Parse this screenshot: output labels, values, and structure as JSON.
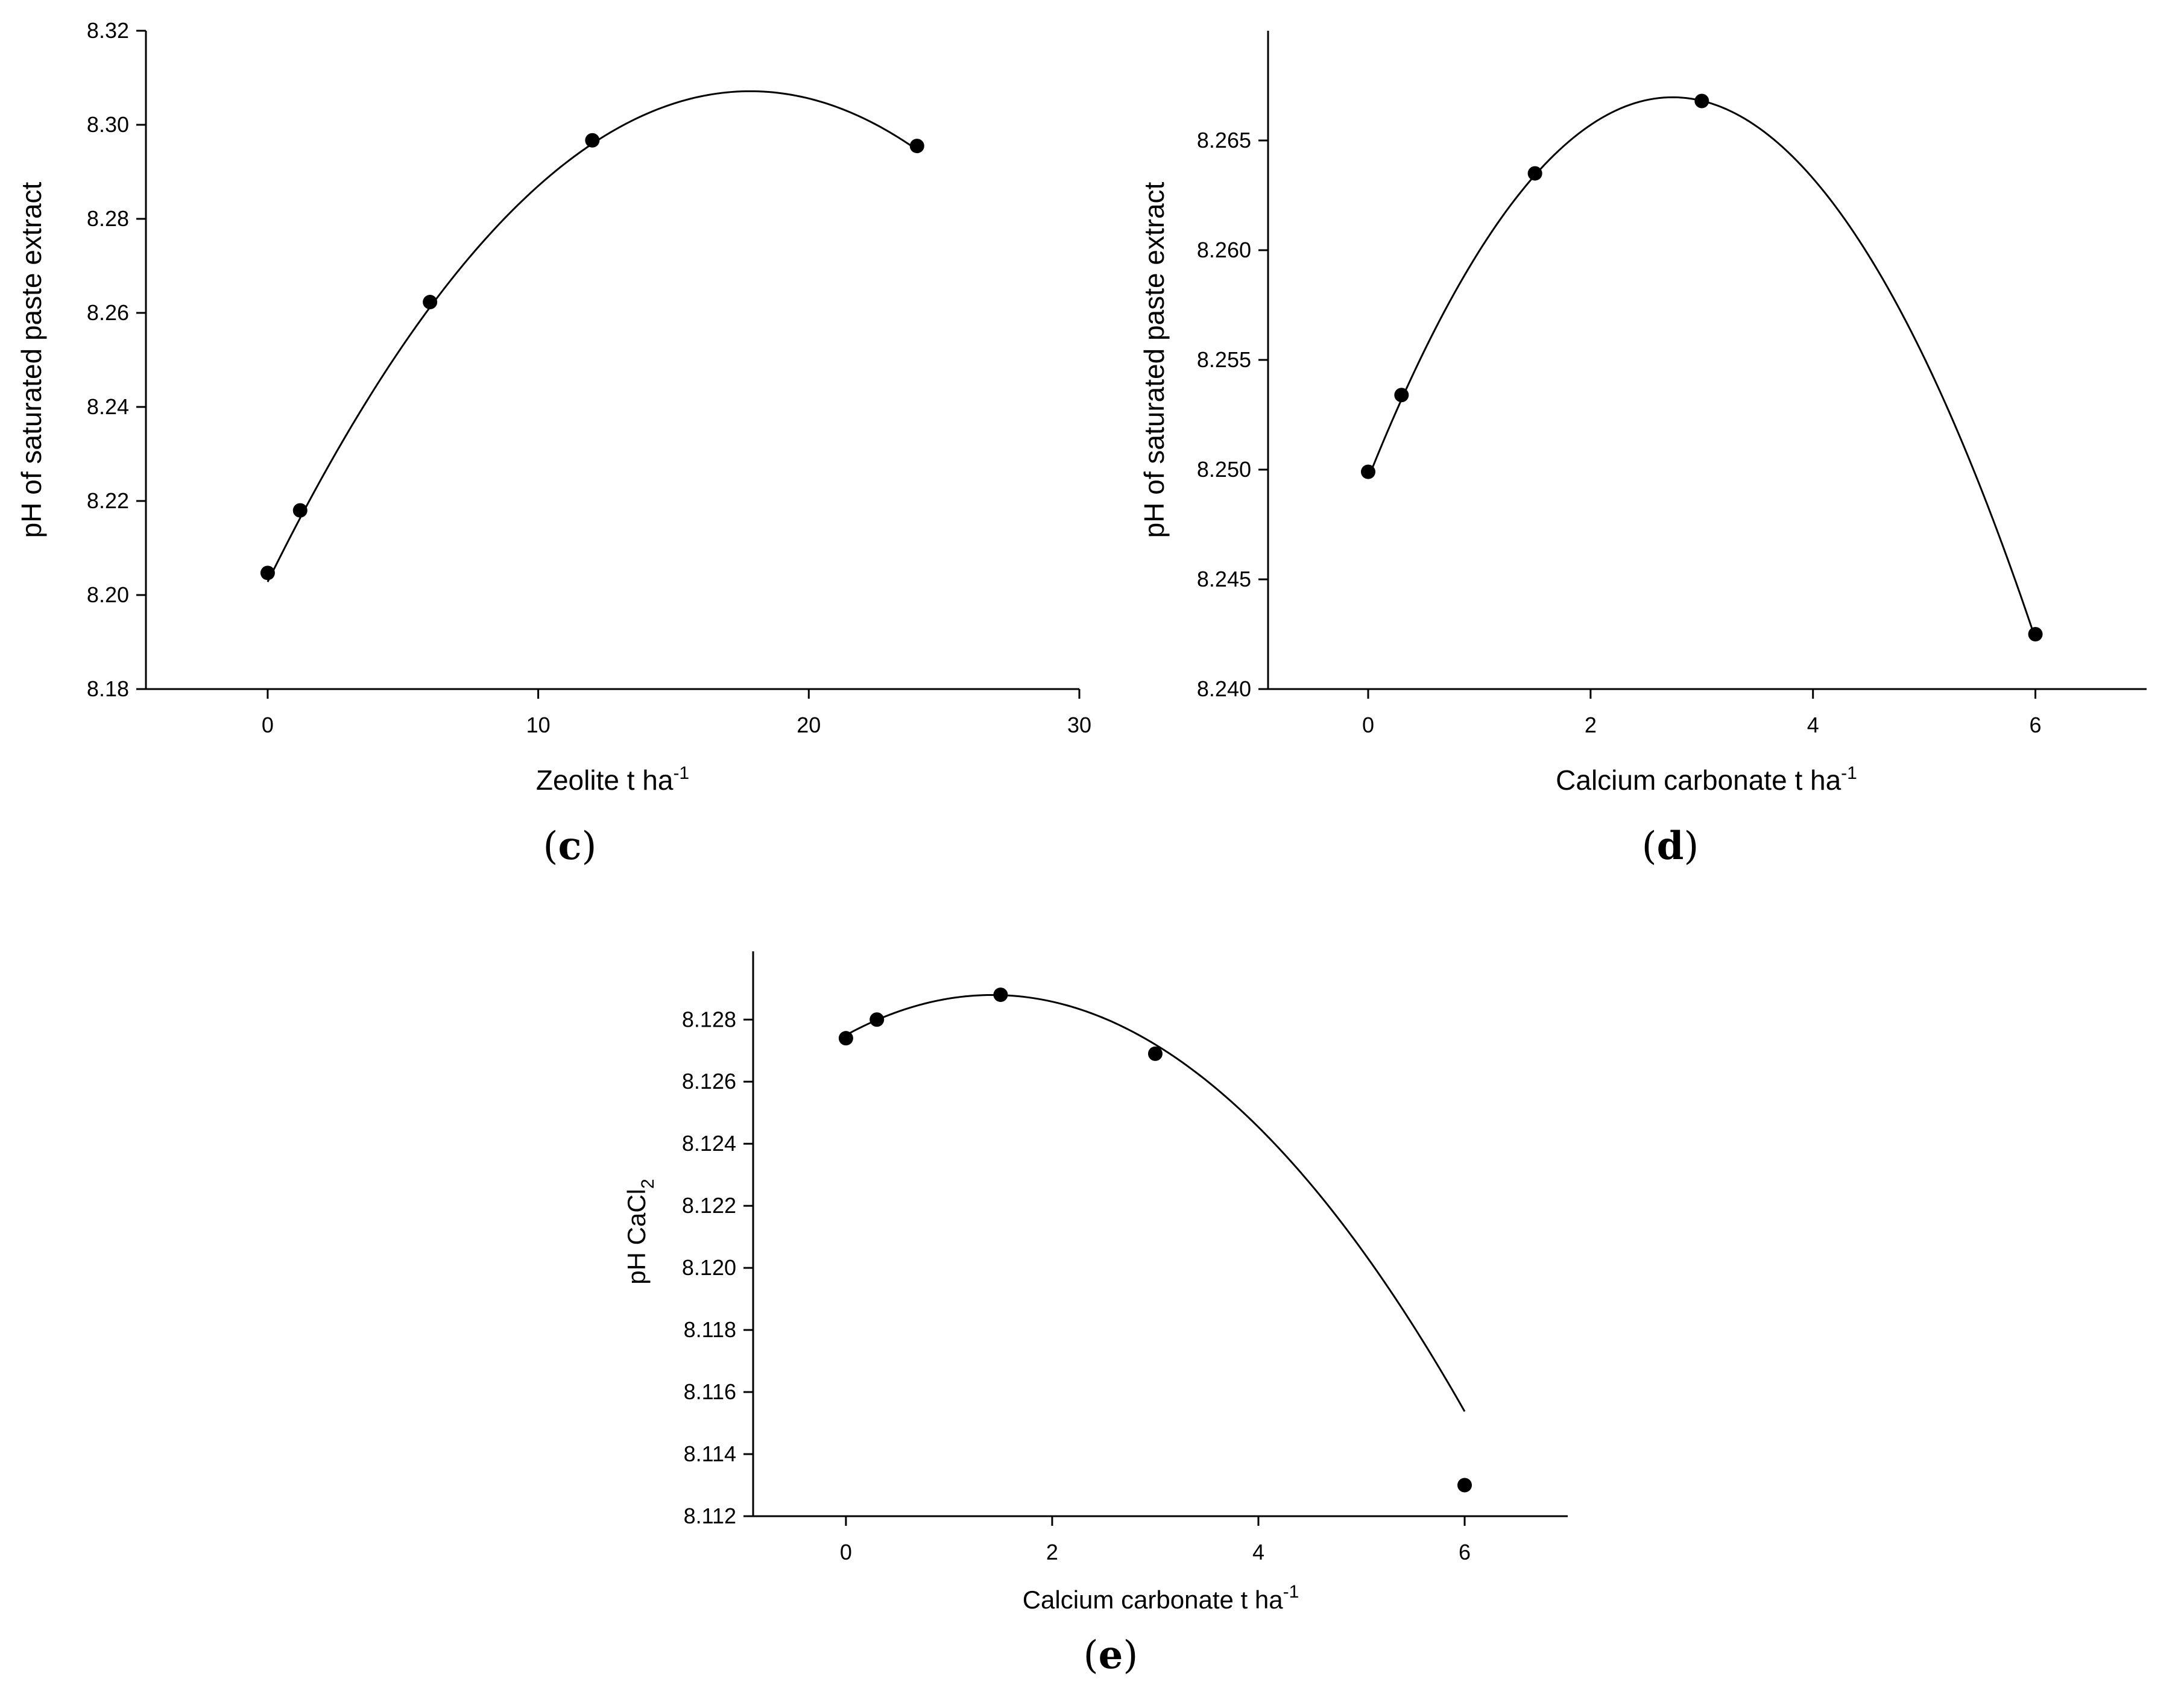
{
  "chart_data": [
    {
      "type": "scatter",
      "panel_label": "c",
      "xlabel": "Zeolite t ha",
      "xlabel_sup": "-1",
      "ylabel": "pH of saturated paste extract",
      "xlim": [
        -4.5,
        30
      ],
      "ylim": [
        8.18,
        8.32
      ],
      "xticks": [
        0,
        10,
        20,
        30
      ],
      "yticks": [
        8.18,
        8.2,
        8.22,
        8.24,
        8.26,
        8.28,
        8.3,
        8.32
      ],
      "ydecimals": 2,
      "x": [
        0,
        1.2,
        6,
        12,
        24
      ],
      "y": [
        8.2047,
        8.218,
        8.2623,
        8.2967,
        8.2955
      ],
      "fit": {
        "type": "quadratic",
        "coefficients": [
          8.2028,
          0.0117,
          -0.000328
        ],
        "x_range": [
          0,
          24
        ]
      }
    },
    {
      "type": "scatter",
      "panel_label": "d",
      "xlabel": "Calcium carbonate t ha",
      "xlabel_sup": "-1",
      "ylabel": "pH of saturated paste extract",
      "xlim": [
        -0.9,
        7
      ],
      "ylim": [
        8.24,
        8.27
      ],
      "xticks": [
        0,
        2,
        4,
        6
      ],
      "yticks": [
        8.24,
        8.245,
        8.25,
        8.255,
        8.26,
        8.265
      ],
      "ydecimals": 3,
      "x": [
        0,
        0.3,
        1.5,
        3,
        6
      ],
      "y": [
        8.2499,
        8.2534,
        8.2635,
        8.2668,
        8.2425
      ],
      "fit": {
        "type": "quadratic",
        "coefficients": [
          8.2496,
          0.01269,
          -0.002318
        ],
        "x_range": [
          0,
          6
        ]
      }
    },
    {
      "type": "scatter",
      "panel_label": "e",
      "xlabel": "Calcium carbonate t ha",
      "xlabel_sup": "-1",
      "ylabel": "pH CaCl",
      "ylabel_sub": "2",
      "xlim": [
        -0.9,
        7
      ],
      "ylim": [
        8.112,
        8.1302
      ],
      "xticks": [
        0,
        2,
        4,
        6
      ],
      "yticks": [
        8.112,
        8.114,
        8.116,
        8.118,
        8.12,
        8.122,
        8.124,
        8.126,
        8.128
      ],
      "ydecimals": 3,
      "x": [
        0,
        0.3,
        1.5,
        3,
        6
      ],
      "y": [
        8.1274,
        8.128,
        8.1288,
        8.1269,
        8.113
      ],
      "fit": {
        "type": "quadratic",
        "coefficients": [
          8.1275,
          0.001819,
          -0.00064
        ],
        "x_range": [
          0,
          6
        ]
      }
    }
  ]
}
